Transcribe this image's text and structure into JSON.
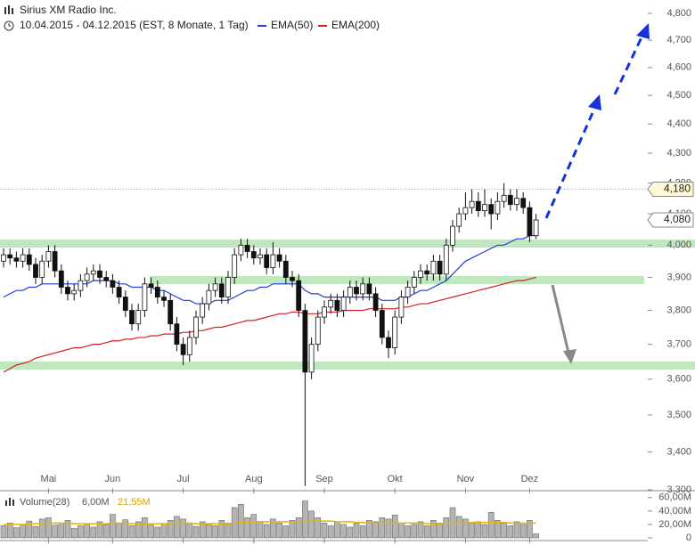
{
  "chart_data": {
    "type": "candlestick",
    "title": "Sirius XM Radio Inc.",
    "subtitle": "10.04.2015 - 04.12.2015 (EST, 8 Monate, 1 Tag)",
    "log_scale": true,
    "categories": [
      null,
      null,
      null,
      null,
      null,
      null,
      null,
      "Mai",
      null,
      null,
      null,
      null,
      null,
      null,
      null,
      null,
      null,
      "Jun",
      null,
      null,
      null,
      null,
      null,
      null,
      null,
      null,
      null,
      null,
      "Jul",
      null,
      null,
      null,
      null,
      null,
      null,
      null,
      null,
      null,
      null,
      "Aug",
      null,
      null,
      null,
      null,
      null,
      null,
      null,
      null,
      null,
      null,
      "Sep",
      null,
      null,
      null,
      null,
      null,
      null,
      null,
      null,
      null,
      null,
      "Okt",
      null,
      null,
      null,
      null,
      null,
      null,
      null,
      null,
      null,
      null,
      "Nov",
      null,
      null,
      null,
      null,
      null,
      null,
      null,
      null,
      null,
      "Dez",
      null
    ],
    "open": [
      3.95,
      3.97,
      3.96,
      3.95,
      3.97,
      3.94,
      3.9,
      3.95,
      3.98,
      3.92,
      3.87,
      3.85,
      3.86,
      3.89,
      3.91,
      3.92,
      3.9,
      3.89,
      3.87,
      3.84,
      3.8,
      3.76,
      3.8,
      3.88,
      3.87,
      3.84,
      3.83,
      3.76,
      3.7,
      3.67,
      3.72,
      3.78,
      3.82,
      3.86,
      3.88,
      3.84,
      3.9,
      3.97,
      4.0,
      3.98,
      3.96,
      3.97,
      3.93,
      3.97,
      3.95,
      3.9,
      3.89,
      3.8,
      3.62,
      3.7,
      3.78,
      3.81,
      3.83,
      3.8,
      3.84,
      3.87,
      3.85,
      3.88,
      3.85,
      3.8,
      3.72,
      3.69,
      3.78,
      3.84,
      3.87,
      3.9,
      3.92,
      3.91,
      3.95,
      3.91,
      4.0,
      4.06,
      4.1,
      4.12,
      4.14,
      4.11,
      4.13,
      4.1,
      4.14,
      4.16,
      4.13,
      4.15,
      4.12,
      4.03
    ],
    "high": [
      3.99,
      3.99,
      3.98,
      3.99,
      3.99,
      3.96,
      3.97,
      4.0,
      4.0,
      3.94,
      3.89,
      3.88,
      3.91,
      3.93,
      3.94,
      3.94,
      3.92,
      3.91,
      3.89,
      3.86,
      3.82,
      3.82,
      3.9,
      3.9,
      3.89,
      3.86,
      3.85,
      3.78,
      3.72,
      3.74,
      3.8,
      3.84,
      3.88,
      3.9,
      3.9,
      3.92,
      3.99,
      4.02,
      4.02,
      4.0,
      3.99,
      3.99,
      4.01,
      3.99,
      3.97,
      3.92,
      3.91,
      3.82,
      3.72,
      3.8,
      3.83,
      3.85,
      3.85,
      3.86,
      3.89,
      3.89,
      3.9,
      3.9,
      3.87,
      3.82,
      3.74,
      3.8,
      3.86,
      3.89,
      3.92,
      3.94,
      3.94,
      3.97,
      3.97,
      4.02,
      4.08,
      4.12,
      4.17,
      4.18,
      4.17,
      4.18,
      4.15,
      4.17,
      4.2,
      4.18,
      4.18,
      4.17,
      4.14,
      4.1
    ],
    "low": [
      3.93,
      3.94,
      3.93,
      3.93,
      3.92,
      3.88,
      3.88,
      3.93,
      3.9,
      3.85,
      3.83,
      3.83,
      3.84,
      3.87,
      3.89,
      3.88,
      3.87,
      3.85,
      3.82,
      3.78,
      3.74,
      3.74,
      3.78,
      3.85,
      3.82,
      3.81,
      3.74,
      3.68,
      3.64,
      3.65,
      3.7,
      3.76,
      3.8,
      3.84,
      3.82,
      3.82,
      3.88,
      3.95,
      3.96,
      3.94,
      3.94,
      3.91,
      3.91,
      3.93,
      3.88,
      3.87,
      3.78,
      3.31,
      3.6,
      3.68,
      3.76,
      3.79,
      3.78,
      3.78,
      3.82,
      3.83,
      3.83,
      3.83,
      3.78,
      3.7,
      3.66,
      3.67,
      3.76,
      3.82,
      3.85,
      3.88,
      3.89,
      3.89,
      3.89,
      3.89,
      3.98,
      4.04,
      4.08,
      4.1,
      4.09,
      4.09,
      4.05,
      4.08,
      4.12,
      4.11,
      4.11,
      4.1,
      4.01,
      4.02
    ],
    "close": [
      3.97,
      3.96,
      3.95,
      3.97,
      3.94,
      3.9,
      3.95,
      3.98,
      3.92,
      3.87,
      3.85,
      3.86,
      3.89,
      3.91,
      3.92,
      3.9,
      3.89,
      3.87,
      3.84,
      3.8,
      3.76,
      3.8,
      3.88,
      3.87,
      3.84,
      3.83,
      3.76,
      3.7,
      3.67,
      3.72,
      3.78,
      3.82,
      3.86,
      3.88,
      3.84,
      3.9,
      3.97,
      4.0,
      3.98,
      3.96,
      3.97,
      3.93,
      3.97,
      3.95,
      3.9,
      3.89,
      3.8,
      3.62,
      3.7,
      3.78,
      3.81,
      3.83,
      3.8,
      3.84,
      3.87,
      3.85,
      3.88,
      3.85,
      3.8,
      3.72,
      3.69,
      3.78,
      3.84,
      3.87,
      3.9,
      3.92,
      3.91,
      3.95,
      3.91,
      4.0,
      4.06,
      4.1,
      4.12,
      4.14,
      4.11,
      4.13,
      4.1,
      4.14,
      4.16,
      4.13,
      4.15,
      4.12,
      4.03,
      4.08
    ],
    "series": [
      {
        "name": "EMA(50)",
        "color": "#1f3fd6",
        "values": [
          3.84,
          3.85,
          3.86,
          3.86,
          3.87,
          3.87,
          3.88,
          3.88,
          3.88,
          3.88,
          3.88,
          3.88,
          3.88,
          3.88,
          3.89,
          3.89,
          3.89,
          3.89,
          3.88,
          3.88,
          3.87,
          3.87,
          3.87,
          3.87,
          3.86,
          3.86,
          3.85,
          3.84,
          3.83,
          3.83,
          3.82,
          3.82,
          3.82,
          3.83,
          3.83,
          3.83,
          3.84,
          3.85,
          3.86,
          3.86,
          3.87,
          3.87,
          3.88,
          3.88,
          3.88,
          3.88,
          3.88,
          3.86,
          3.85,
          3.85,
          3.84,
          3.84,
          3.84,
          3.84,
          3.84,
          3.84,
          3.84,
          3.84,
          3.84,
          3.83,
          3.83,
          3.83,
          3.84,
          3.84,
          3.85,
          3.86,
          3.86,
          3.87,
          3.88,
          3.89,
          3.91,
          3.93,
          3.95,
          3.96,
          3.97,
          3.98,
          3.99,
          4.0,
          4.0,
          4.01,
          4.02,
          4.02,
          4.03,
          4.03
        ]
      },
      {
        "name": "EMA(200)",
        "color": "#d42020",
        "values": [
          3.62,
          3.63,
          3.64,
          3.645,
          3.65,
          3.66,
          3.665,
          3.67,
          3.675,
          3.68,
          3.685,
          3.69,
          3.69,
          3.695,
          3.7,
          3.7,
          3.705,
          3.71,
          3.71,
          3.715,
          3.715,
          3.72,
          3.72,
          3.725,
          3.725,
          3.73,
          3.73,
          3.73,
          3.735,
          3.735,
          3.74,
          3.74,
          3.745,
          3.75,
          3.75,
          3.755,
          3.76,
          3.765,
          3.77,
          3.77,
          3.775,
          3.78,
          3.785,
          3.79,
          3.79,
          3.795,
          3.795,
          3.79,
          3.79,
          3.79,
          3.795,
          3.795,
          3.795,
          3.8,
          3.8,
          3.8,
          3.8,
          3.805,
          3.805,
          3.805,
          3.805,
          3.805,
          3.81,
          3.81,
          3.815,
          3.82,
          3.82,
          3.825,
          3.83,
          3.835,
          3.84,
          3.845,
          3.85,
          3.855,
          3.86,
          3.865,
          3.87,
          3.875,
          3.88,
          3.885,
          3.89,
          3.89,
          3.895,
          3.9
        ]
      }
    ],
    "ylim": [
      3.3,
      4.8
    ],
    "yticks": [
      {
        "value": 3.3,
        "label": "3,300"
      },
      {
        "value": 3.4,
        "label": "3,400"
      },
      {
        "value": 3.5,
        "label": "3,500"
      },
      {
        "value": 3.6,
        "label": "3,600"
      },
      {
        "value": 3.7,
        "label": "3,700"
      },
      {
        "value": 3.8,
        "label": "3,800"
      },
      {
        "value": 3.9,
        "label": "3,900"
      },
      {
        "value": 4.0,
        "label": "4,000"
      },
      {
        "value": 4.1,
        "label": "4,100"
      },
      {
        "value": 4.2,
        "label": "4,200"
      },
      {
        "value": 4.3,
        "label": "4,300"
      },
      {
        "value": 4.4,
        "label": "4,400"
      },
      {
        "value": 4.5,
        "label": "4,500"
      },
      {
        "value": 4.6,
        "label": "4,600"
      },
      {
        "value": 4.7,
        "label": "4,700"
      },
      {
        "value": 4.8,
        "label": "4,800"
      }
    ],
    "price_tags": [
      {
        "value": 4.18,
        "label": "4,180"
      },
      {
        "value": 4.08,
        "label": "4,080"
      }
    ],
    "volume": {
      "label": "Volume(28)",
      "last": "6,00M",
      "average": "21,55M",
      "color": "#b4b4b4",
      "average_color": "#e8b400",
      "values": [
        18,
        22,
        15,
        20,
        25,
        17,
        28,
        30,
        19,
        22,
        26,
        14,
        18,
        21,
        16,
        24,
        20,
        35,
        22,
        27,
        18,
        24,
        30,
        19,
        16,
        21,
        26,
        32,
        28,
        22,
        17,
        24,
        20,
        18,
        26,
        22,
        45,
        50,
        30,
        35,
        24,
        20,
        28,
        22,
        18,
        26,
        30,
        55,
        40,
        30,
        22,
        18,
        24,
        20,
        16,
        22,
        18,
        26,
        24,
        30,
        28,
        34,
        22,
        18,
        20,
        24,
        18,
        26,
        22,
        30,
        45,
        32,
        28,
        22,
        24,
        20,
        38,
        26,
        22,
        18,
        24,
        20,
        26,
        6
      ],
      "average_values": [
        20,
        20,
        20,
        20,
        21,
        21,
        21,
        22,
        22,
        22,
        22,
        21,
        21,
        21,
        21,
        21,
        21,
        22,
        22,
        22,
        21,
        21,
        21,
        21,
        21,
        21,
        21,
        22,
        22,
        22,
        21,
        21,
        21,
        21,
        21,
        21,
        22,
        23,
        23,
        24,
        24,
        24,
        24,
        24,
        24,
        24,
        24,
        25,
        25,
        25,
        25,
        25,
        24,
        24,
        24,
        23,
        23,
        22,
        22,
        22,
        22,
        22,
        22,
        22,
        22,
        22,
        21,
        21,
        21,
        22,
        22,
        22,
        22,
        23,
        23,
        23,
        23,
        23,
        23,
        22,
        22,
        22,
        22,
        22
      ],
      "ylim": [
        0,
        65
      ],
      "yticks": [
        {
          "value": 0,
          "label": "0"
        },
        {
          "value": 20,
          "label": "20,00M"
        },
        {
          "value": 40,
          "label": "40,00M"
        },
        {
          "value": 60,
          "label": "60,00M"
        }
      ]
    }
  }
}
